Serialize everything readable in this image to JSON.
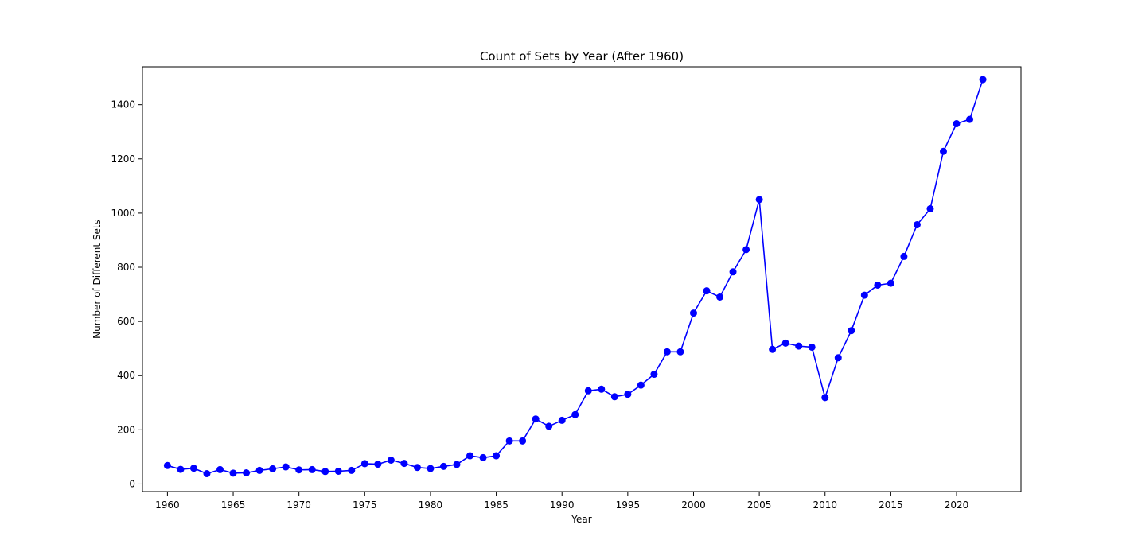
{
  "chart_data": {
    "type": "line",
    "title": "Count of Sets by Year (After 1960)",
    "xlabel": "Year",
    "ylabel": "Number of Different Sets",
    "xlim": [
      1958.1,
      2024.9
    ],
    "ylim": [
      -28,
      1540
    ],
    "xticks": [
      1960,
      1965,
      1970,
      1975,
      1980,
      1985,
      1990,
      1995,
      2000,
      2005,
      2010,
      2015,
      2020
    ],
    "yticks": [
      0,
      200,
      400,
      600,
      800,
      1000,
      1200,
      1400
    ],
    "grid": false,
    "legend": "none",
    "series": [
      {
        "color": "#0000ff",
        "marker": "circle",
        "x": [
          1960,
          1961,
          1962,
          1963,
          1964,
          1965,
          1966,
          1967,
          1968,
          1969,
          1970,
          1971,
          1972,
          1973,
          1974,
          1975,
          1976,
          1977,
          1978,
          1979,
          1980,
          1981,
          1982,
          1983,
          1984,
          1985,
          1986,
          1987,
          1988,
          1989,
          1990,
          1991,
          1992,
          1993,
          1994,
          1995,
          1996,
          1997,
          1998,
          1999,
          2000,
          2001,
          2002,
          2003,
          2004,
          2005,
          2006,
          2007,
          2008,
          2009,
          2010,
          2011,
          2012,
          2013,
          2014,
          2015,
          2016,
          2017,
          2018,
          2019,
          2020,
          2021,
          2022
        ],
        "y": [
          68,
          54,
          58,
          38,
          53,
          40,
          41,
          50,
          56,
          63,
          52,
          53,
          46,
          47,
          50,
          75,
          73,
          88,
          76,
          61,
          57,
          65,
          72,
          104,
          97,
          104,
          159,
          159,
          240,
          213,
          235,
          256,
          344,
          350,
          322,
          331,
          365,
          405,
          488,
          488,
          631,
          713,
          690,
          783,
          865,
          1050,
          497,
          520,
          509,
          505,
          319,
          466,
          566,
          697,
          734,
          741,
          840,
          957,
          1016,
          1228,
          1330,
          1346,
          1493
        ]
      }
    ]
  }
}
